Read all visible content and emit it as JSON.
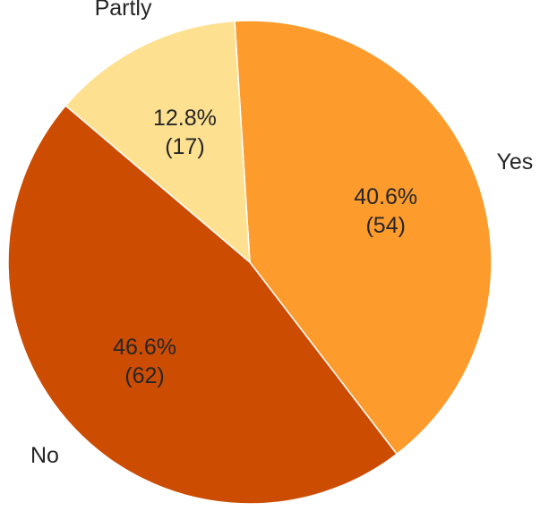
{
  "chart_data": {
    "type": "pie",
    "categories": [
      "Yes",
      "No",
      "Partly"
    ],
    "values": [
      54,
      62,
      17
    ],
    "value_labels": [
      "(54)",
      "(62)",
      "(17)"
    ],
    "percentages": [
      40.6,
      46.6,
      12.8
    ],
    "percentage_labels": [
      "40.6%",
      "46.6%",
      "12.8%"
    ],
    "colors": [
      "#fd9b2c",
      "#cc4c02",
      "#fee091"
    ],
    "start_angle": -3.6,
    "direction": "clockwise"
  }
}
